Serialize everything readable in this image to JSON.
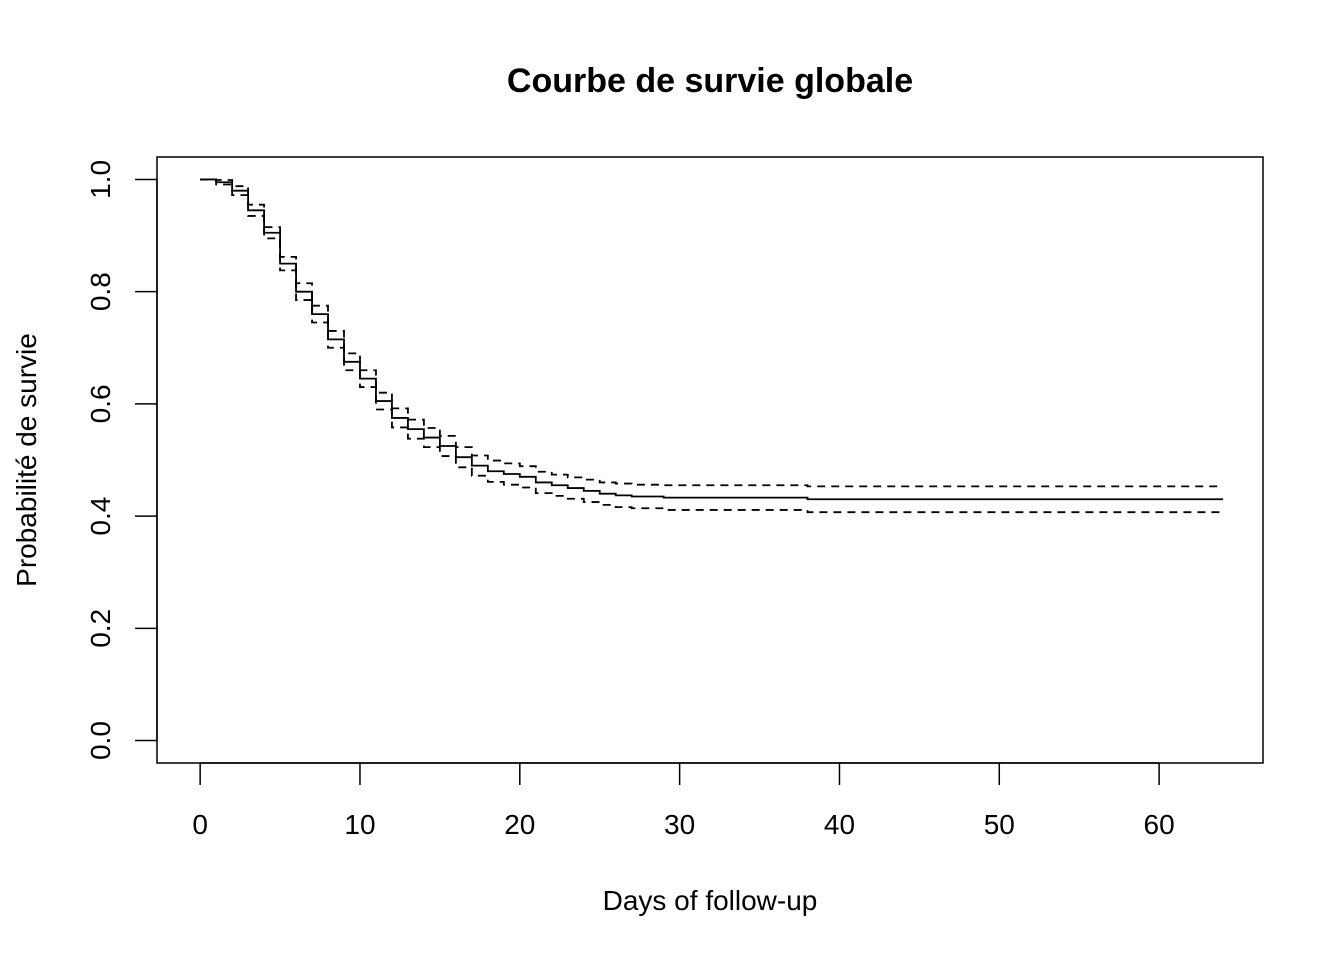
{
  "chart_data": {
    "type": "line",
    "title": "Courbe de survie globale",
    "xlabel": "Days of follow-up",
    "ylabel": "Probabilité de survie",
    "xlim": [
      -2.7,
      66.5
    ],
    "ylim": [
      -0.04,
      1.04
    ],
    "x_ticks": [
      0,
      10,
      20,
      30,
      40,
      50,
      60
    ],
    "x_tick_labels": [
      "0",
      "10",
      "20",
      "30",
      "40",
      "50",
      "60"
    ],
    "y_ticks": [
      0.0,
      0.2,
      0.4,
      0.6,
      0.8,
      1.0
    ],
    "y_tick_labels": [
      "0.0",
      "0.2",
      "0.4",
      "0.6",
      "0.8",
      "1.0"
    ],
    "grid": false,
    "legend": "none",
    "step": true,
    "series": [
      {
        "role": "estimate",
        "style": "solid",
        "color": "#000000",
        "x": [
          0,
          1,
          2,
          3,
          4,
          5,
          6,
          7,
          8,
          9,
          10,
          11,
          12,
          13,
          14,
          15,
          16,
          17,
          18,
          19,
          20,
          21,
          22,
          23,
          24,
          25,
          26,
          27,
          29,
          38,
          64
        ],
        "y": [
          1.0,
          0.995,
          0.98,
          0.945,
          0.905,
          0.85,
          0.8,
          0.76,
          0.715,
          0.675,
          0.645,
          0.605,
          0.575,
          0.555,
          0.54,
          0.525,
          0.505,
          0.49,
          0.48,
          0.475,
          0.47,
          0.46,
          0.455,
          0.45,
          0.445,
          0.44,
          0.437,
          0.435,
          0.433,
          0.43,
          0.43
        ]
      },
      {
        "role": "upper-ci",
        "style": "dashed",
        "color": "#000000",
        "x": [
          0,
          1,
          2,
          3,
          4,
          5,
          6,
          7,
          8,
          9,
          10,
          11,
          12,
          13,
          14,
          15,
          16,
          17,
          18,
          19,
          20,
          21,
          22,
          23,
          24,
          25,
          26,
          27,
          29,
          38,
          64
        ],
        "y": [
          1.0,
          0.999,
          0.988,
          0.955,
          0.915,
          0.862,
          0.815,
          0.775,
          0.73,
          0.69,
          0.66,
          0.62,
          0.592,
          0.572,
          0.557,
          0.543,
          0.523,
          0.508,
          0.499,
          0.494,
          0.489,
          0.479,
          0.474,
          0.469,
          0.465,
          0.46,
          0.458,
          0.456,
          0.455,
          0.453,
          0.453
        ]
      },
      {
        "role": "lower-ci",
        "style": "dashed",
        "color": "#000000",
        "x": [
          0,
          1,
          2,
          3,
          4,
          5,
          6,
          7,
          8,
          9,
          10,
          11,
          12,
          13,
          14,
          15,
          16,
          17,
          18,
          19,
          20,
          21,
          22,
          23,
          24,
          25,
          26,
          27,
          29,
          38,
          64
        ],
        "y": [
          1.0,
          0.991,
          0.972,
          0.935,
          0.895,
          0.838,
          0.785,
          0.745,
          0.7,
          0.66,
          0.63,
          0.59,
          0.558,
          0.538,
          0.523,
          0.507,
          0.487,
          0.472,
          0.461,
          0.456,
          0.451,
          0.441,
          0.436,
          0.431,
          0.425,
          0.42,
          0.416,
          0.414,
          0.411,
          0.407,
          0.407
        ]
      }
    ]
  }
}
